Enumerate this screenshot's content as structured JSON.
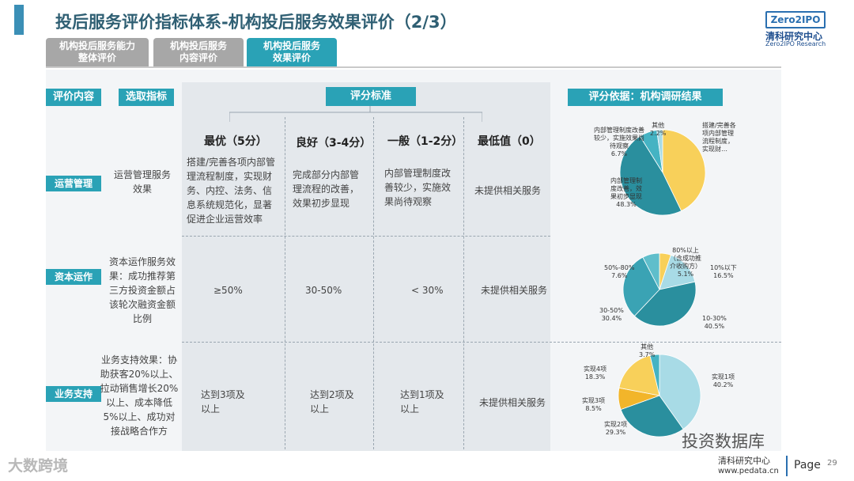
{
  "header": {
    "title": "投后服务评价指标体系-机构投后服务效果评价（2/3）",
    "logo_mark": "Zero2IPO",
    "logo_cn": "清科研究中心",
    "logo_en": "Zero2IPO Research"
  },
  "tabs": [
    {
      "line1": "机构投后服务能力",
      "line2": "整体评价",
      "active": false
    },
    {
      "line1": "机构投后服务",
      "line2": "内容评价",
      "active": false
    },
    {
      "line1": "机构投后服务",
      "line2": "效果评价",
      "active": true
    }
  ],
  "table_headers": {
    "content": "评价内容",
    "indicator": "选取指标",
    "standard": "评分标准",
    "basis": "评分依据：机构调研结果"
  },
  "levels": [
    "最优（5分）",
    "良好（3-4分）",
    "一般（1-2分）",
    "最低值（0）"
  ],
  "rows": [
    {
      "label": "运营管理",
      "indicator": "运营管理服务效果",
      "cells": [
        "搭建/完善各项内部管理流程制度，实现财务、内控、法务、信息系统规范化，显著促进企业运营效率",
        "完成部分内部管理流程的改善，效果初步显现",
        "内部管理制度改善较少，实施效果尚待观察",
        "未提供相关服务"
      ],
      "pie": {
        "slices": [
          {
            "label": "搭建/完善各项内部管理流程制度，实现财…",
            "value": 42.8,
            "color": "#f8d05a"
          },
          {
            "label": "内部管理制度改善，效果初步显现",
            "value": 48.3,
            "value_label": "48.3%",
            "color": "#2a8f9e"
          },
          {
            "label": "内部管理制度改善较少，实施效果尚待观察",
            "value": 6.7,
            "value_label": "6.7%",
            "color": "#45b3c3"
          },
          {
            "label": "其他",
            "value": 2.2,
            "value_label": "2.2%",
            "color": "#a8dbe6"
          }
        ]
      }
    },
    {
      "label": "资本运作",
      "indicator": "资本运作服务效果：成功推荐第三方投资金额占该轮次融资金额比例",
      "cells": [
        "≥50%",
        "30-50%",
        "< 30%",
        "未提供相关服务"
      ],
      "pie": {
        "slices": [
          {
            "label": "80%以上（含成功推介收购方）",
            "value": 5.1,
            "value_label": "5.1%",
            "color": "#f8d05a"
          },
          {
            "label": "10%以下",
            "value": 16.5,
            "value_label": "16.5%",
            "color": "#a8dbe6"
          },
          {
            "label": "10-30%",
            "value": 40.5,
            "value_label": "40.5%",
            "color": "#2a8f9e"
          },
          {
            "label": "30-50%",
            "value": 30.4,
            "value_label": "30.4%",
            "color": "#3aa3b4"
          },
          {
            "label": "50%-80%",
            "value": 7.6,
            "value_label": "7.6%",
            "color": "#5fbecb"
          }
        ]
      }
    },
    {
      "label": "业务支持",
      "indicator": "业务支持效果：协助获客20%以上、拉动销售增长20%以上、成本降低5%以上、成功对接战略合作方",
      "cells": [
        "达到3项及以上",
        "达到2项及以上",
        "达到1项及以上",
        "未提供相关服务"
      ],
      "pie": {
        "slices": [
          {
            "label": "实现1项",
            "value": 40.2,
            "value_label": "40.2%",
            "color": "#a8dbe6"
          },
          {
            "label": "实现2项",
            "value": 29.3,
            "value_label": "29.3%",
            "color": "#2a8f9e"
          },
          {
            "label": "实现3项",
            "value": 8.5,
            "value_label": "8.5%",
            "color": "#f2b52a"
          },
          {
            "label": "实现4项",
            "value": 18.3,
            "value_label": "18.3%",
            "color": "#f8d05a"
          },
          {
            "label": "其他",
            "value": 3.7,
            "value_label": "3.7%",
            "color": "#45b3c3"
          }
        ]
      }
    }
  ],
  "footer": {
    "left_brand": "大数跨境",
    "watermark": "投资数据库",
    "org": "清科研究中心",
    "url": "www.pedata.cn",
    "page_word": "Page",
    "page_num": "29"
  }
}
